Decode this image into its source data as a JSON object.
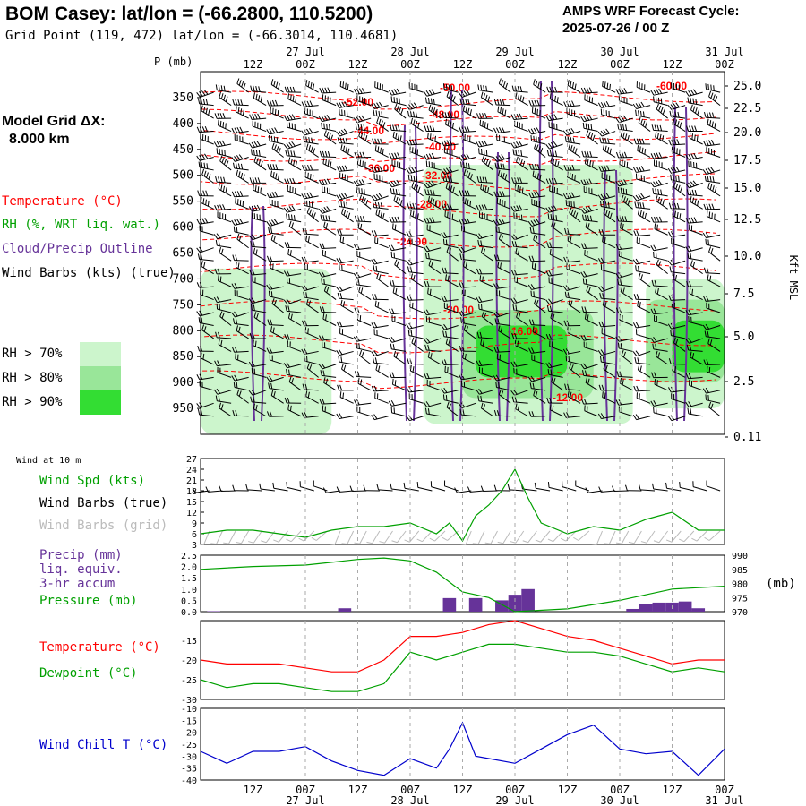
{
  "header": {
    "title": "BOM Casey:  lat/lon = (-66.2800, 110.5200)",
    "subtitle": "Grid Point (119, 472) lat/lon = (-66.3014, 110.4681)",
    "cycle_line1": "AMPS WRF Forecast Cycle:",
    "cycle_line2": "2025-07-26 / 00  Z"
  },
  "sidebar": {
    "model_grid": "Model Grid ΔX:",
    "grid_size": "8.000 km",
    "temperature": "Temperature (°C)",
    "rh": "RH (%, WRT liq. wat.)",
    "cloud": "Cloud/Precip Outline",
    "barbs": "Wind Barbs (kts) (true)",
    "rh70": "RH > 70%",
    "rh80": "RH > 80%",
    "rh90": "RH > 90%"
  },
  "colors": {
    "temperature": "#ff0000",
    "rh": "#00a000",
    "cloud": "#663399",
    "rh70": "#ccf5cc",
    "rh80": "#99e699",
    "rh90": "#33dd33",
    "wind_chill": "#0000cc",
    "grid_barbs": "#bbbbbb"
  },
  "time_axis": {
    "hour_labels": [
      "12Z",
      "00Z",
      "12Z",
      "00Z",
      "12Z",
      "00Z",
      "12Z",
      "00Z",
      "12Z",
      "00Z"
    ],
    "date_labels": [
      "27 Jul",
      "28 Jul",
      "29 Jul",
      "30 Jul",
      "31 Jul"
    ],
    "forecast_hours_start": 0,
    "forecast_hours_end": 120
  },
  "cross_section": {
    "p_axis_label": "P (mb)",
    "p_ticks": [
      "350",
      "400",
      "450",
      "500",
      "550",
      "600",
      "650",
      "700",
      "750",
      "800",
      "850",
      "900",
      "950"
    ],
    "alt_axis_label": "Kft MSL",
    "alt_ticks": [
      "25.0",
      "22.5",
      "20.0",
      "17.5",
      "15.0",
      "12.5",
      "10.0",
      "7.5",
      "5.0",
      "2.5",
      "0.11"
    ],
    "temperature_labels": [
      "-52.00",
      "-50.00",
      "-48.00",
      "-44.00",
      "-40.00",
      "-36.00",
      "-32.00",
      "-28.00",
      "-24.00",
      "-20.00",
      "-16.00",
      "-12.00",
      "-60.00"
    ]
  },
  "panels": {
    "wind_header": "Wind at 10 m",
    "wind_spd": "Wind Spd (kts)",
    "wind_barbs_true": "Wind Barbs (true)",
    "wind_barbs_grid": "Wind Barbs (grid)",
    "precip": "Precip (mm)",
    "liq_equiv": "liq. equiv.",
    "accum": "3-hr accum",
    "pressure": "Pressure (mb)",
    "pressure_unit": "(mb)",
    "temperature": "Temperature (°C)",
    "dewpoint": "Dewpoint (°C)",
    "wind_chill": "Wind Chill T (°C)"
  },
  "chart_data": [
    {
      "type": "heatmap",
      "title": "BOM Casey:  lat/lon = (-66.2800, 110.5200)",
      "xlabel": "",
      "ylabel": "P (mb)",
      "ylim": [
        1000,
        300
      ],
      "y2label": "Kft MSL",
      "x": [
        0,
        6,
        12,
        18,
        24,
        30,
        36,
        42,
        48,
        54,
        60,
        66,
        72,
        78,
        84,
        90,
        96,
        102,
        108,
        114,
        120
      ],
      "rh_regions": [
        {
          "level": 70,
          "x_range": [
            0,
            30
          ],
          "p_range": [
            680,
            1000
          ]
        },
        {
          "level": 70,
          "x_range": [
            51,
            99
          ],
          "p_range": [
            480,
            980
          ]
        },
        {
          "level": 70,
          "x_range": [
            102,
            120
          ],
          "p_range": [
            700,
            950
          ]
        },
        {
          "level": 80,
          "x_range": [
            60,
            90
          ],
          "p_range": [
            760,
            930
          ]
        },
        {
          "level": 80,
          "x_range": [
            102,
            120
          ],
          "p_range": [
            740,
            900
          ]
        },
        {
          "level": 90,
          "x_range": [
            63,
            84
          ],
          "p_range": [
            790,
            890
          ]
        },
        {
          "level": 90,
          "x_range": [
            108,
            120
          ],
          "p_range": [
            780,
            880
          ]
        }
      ],
      "temperature_contours": [
        -60,
        -52,
        -50,
        -48,
        -44,
        -40,
        -36,
        -32,
        -28,
        -24,
        -20,
        -16,
        -12
      ]
    },
    {
      "type": "line",
      "title": "Wind at 10 m",
      "ylabel": "Wind Spd (kts)",
      "ylim": [
        3,
        27
      ],
      "yticks": [
        3,
        6,
        9,
        12,
        15,
        18,
        21,
        24,
        27
      ],
      "x": [
        0,
        6,
        12,
        18,
        24,
        30,
        36,
        42,
        48,
        54,
        57,
        60,
        63,
        66,
        69,
        72,
        75,
        78,
        84,
        90,
        96,
        102,
        108,
        114,
        120
      ],
      "series": [
        {
          "name": "Wind Spd (kts)",
          "values": [
            6,
            7,
            7,
            6,
            5,
            7,
            8,
            8,
            9,
            6,
            9,
            4,
            11,
            14,
            18,
            24,
            16,
            9,
            6,
            8,
            7,
            10,
            12,
            7,
            7
          ]
        }
      ]
    },
    {
      "type": "bar",
      "title": "Precip / Pressure",
      "ylabel": "Precip (mm)",
      "ylim": [
        0,
        2.5
      ],
      "yticks": [
        "0.0",
        "0.5",
        "1.0",
        "1.5",
        "2.0",
        "2.5"
      ],
      "y2lim": [
        970,
        990
      ],
      "y2ticks": [
        "970",
        "975",
        "980",
        "985",
        "990"
      ],
      "x": [
        3,
        33,
        57,
        63,
        69,
        72,
        75,
        99,
        102,
        105,
        108,
        111,
        114
      ],
      "series": [
        {
          "name": "Precip (mm)",
          "values": [
            0.02,
            0.15,
            0.6,
            0.6,
            0.5,
            0.75,
            1.0,
            0.12,
            0.35,
            0.4,
            0.4,
            0.45,
            0.15
          ]
        },
        {
          "name": "Pressure (mb)",
          "x": [
            0,
            12,
            24,
            36,
            42,
            48,
            54,
            60,
            66,
            72,
            84,
            96,
            108,
            120
          ],
          "values": [
            985,
            986,
            986.5,
            988.5,
            989,
            988,
            984,
            977,
            975,
            970,
            971,
            974,
            978,
            979
          ]
        }
      ]
    },
    {
      "type": "line",
      "title": "Temperature / Dewpoint",
      "ylabel": "Temperature (°C)",
      "ylim": [
        -30,
        -10
      ],
      "yticks": [
        "-15",
        "-20",
        "-25",
        "-30"
      ],
      "x": [
        0,
        6,
        12,
        18,
        24,
        30,
        36,
        42,
        48,
        54,
        60,
        66,
        72,
        78,
        84,
        90,
        96,
        102,
        108,
        114,
        120
      ],
      "series": [
        {
          "name": "Temperature (°C)",
          "values": [
            -20,
            -21,
            -21,
            -21,
            -22,
            -23,
            -23,
            -20,
            -14,
            -14,
            -13,
            -11,
            -10,
            -12,
            -14,
            -15,
            -17,
            -19,
            -21,
            -20,
            -20
          ]
        },
        {
          "name": "Dewpoint (°C)",
          "values": [
            -25,
            -27,
            -26,
            -26,
            -27,
            -28,
            -28,
            -26,
            -18,
            -20,
            -18,
            -16,
            -16,
            -17,
            -18,
            -18,
            -19,
            -21,
            -23,
            -22,
            -23
          ]
        }
      ]
    },
    {
      "type": "line",
      "title": "Wind Chill",
      "ylabel": "Wind Chill T (°C)",
      "ylim": [
        -40,
        -10
      ],
      "yticks": [
        "-10",
        "-15",
        "-20",
        "-25",
        "-30",
        "-35",
        "-40"
      ],
      "x": [
        0,
        6,
        12,
        18,
        24,
        30,
        36,
        42,
        48,
        54,
        57,
        60,
        63,
        66,
        72,
        78,
        84,
        90,
        96,
        102,
        108,
        114,
        120
      ],
      "series": [
        {
          "name": "Wind Chill T (°C)",
          "values": [
            -28,
            -33,
            -28,
            -28,
            -26,
            -32,
            -36,
            -38,
            -31,
            -35,
            -27,
            -16,
            -30,
            -31,
            -33,
            -27,
            -21,
            -17,
            -27,
            -29,
            -28,
            -38,
            -27
          ]
        }
      ]
    }
  ]
}
